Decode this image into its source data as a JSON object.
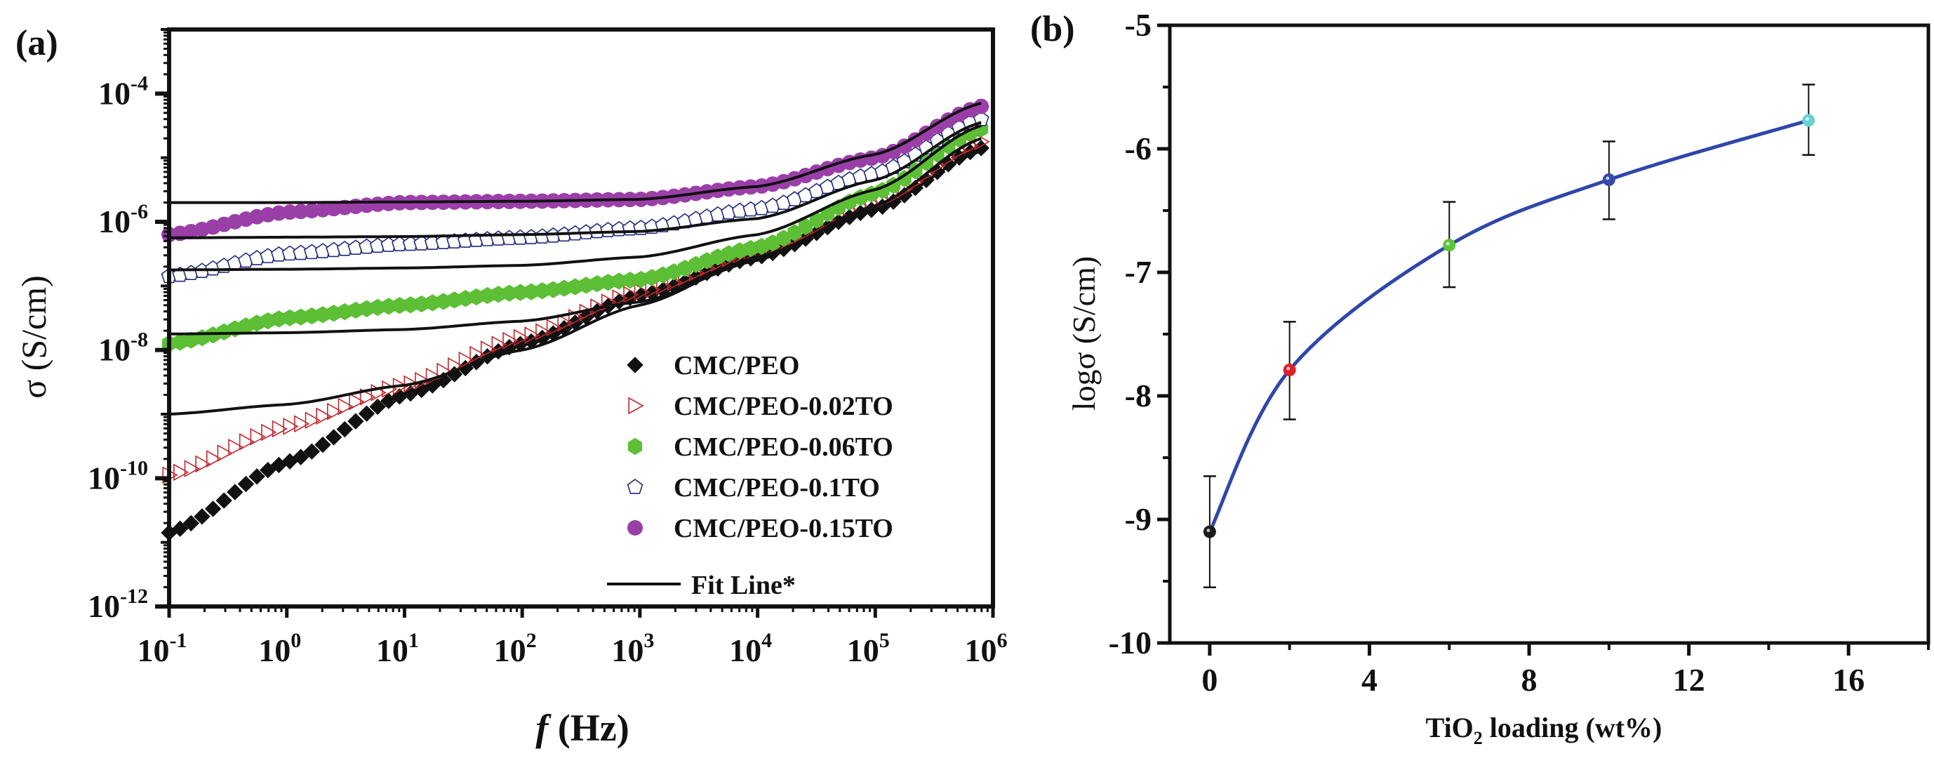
{
  "chart_data": [
    {
      "panel_label": "(a)",
      "type": "scatter",
      "x_scale": "log",
      "y_scale": "log",
      "xlabel_italic": "f",
      "xlabel_rest": " (Hz)",
      "ylabel": "σ (S/cm)",
      "xlim_exp": [
        -1,
        6
      ],
      "ylim_exp": [
        -12,
        -3
      ],
      "x_ticks": [
        {
          "base": "10",
          "exp": "-1",
          "value": -1
        },
        {
          "base": "10",
          "exp": "0",
          "value": 0
        },
        {
          "base": "10",
          "exp": "1",
          "value": 1
        },
        {
          "base": "10",
          "exp": "2",
          "value": 2
        },
        {
          "base": "10",
          "exp": "3",
          "value": 3
        },
        {
          "base": "10",
          "exp": "4",
          "value": 4
        },
        {
          "base": "10",
          "exp": "5",
          "value": 5
        },
        {
          "base": "10",
          "exp": "6",
          "value": 6
        }
      ],
      "y_ticks": [
        {
          "base": "10",
          "exp": "-4",
          "value": -4
        },
        {
          "base": "10",
          "exp": "-6",
          "value": -6
        },
        {
          "base": "10",
          "exp": "-8",
          "value": -8
        },
        {
          "base": "10",
          "exp": "-10",
          "value": -10
        },
        {
          "base": "10",
          "exp": "-12",
          "value": -12
        }
      ],
      "series": [
        {
          "name": "CMC/PEO",
          "marker": "diamond",
          "color": "#111111",
          "filled": true,
          "log_f": [
            -1,
            0,
            1,
            2,
            3,
            4,
            5,
            5.9
          ],
          "log_sigma": [
            -10.85,
            -9.75,
            -8.7,
            -7.9,
            -7.15,
            -6.55,
            -5.8,
            -4.85
          ]
        },
        {
          "name": "CMC/PEO-0.02TO",
          "marker": "triangle-right",
          "color": "#c0282d",
          "filled": false,
          "log_f": [
            -1,
            0,
            1,
            2,
            3,
            4,
            5,
            5.9
          ],
          "log_sigma": [
            -9.95,
            -9.2,
            -8.55,
            -7.8,
            -7.1,
            -6.45,
            -5.7,
            -4.75
          ]
        },
        {
          "name": "CMC/PEO-0.06TO",
          "marker": "hexagon",
          "color": "#5cbf35",
          "filled": true,
          "log_f": [
            -1,
            0,
            1,
            2,
            3,
            4,
            5,
            5.9
          ],
          "log_sigma": [
            -7.9,
            -7.5,
            -7.3,
            -7.1,
            -6.9,
            -6.4,
            -5.55,
            -4.55
          ]
        },
        {
          "name": "CMC/PEO-0.1TO",
          "marker": "pentagon",
          "color": "#1f2a7a",
          "filled": false,
          "log_f": [
            -1,
            0,
            1,
            2,
            3,
            4,
            5,
            5.9
          ],
          "log_sigma": [
            -6.85,
            -6.5,
            -6.35,
            -6.25,
            -6.1,
            -5.8,
            -5.25,
            -4.4
          ]
        },
        {
          "name": "CMC/PEO-0.15TO",
          "marker": "circle",
          "color": "#9b3fa8",
          "filled": true,
          "log_f": [
            -1,
            0,
            1,
            2,
            3,
            4,
            5,
            5.9
          ],
          "log_sigma": [
            -6.2,
            -5.85,
            -5.7,
            -5.68,
            -5.65,
            -5.45,
            -5.0,
            -4.2
          ]
        }
      ],
      "fit_lines": {
        "name": "Fit Line*",
        "color": "#111111",
        "curves": [
          {
            "log_f": [
              -1,
              0,
              1,
              2,
              3,
              4,
              5,
              5.9
            ],
            "log_sigma": [
              -9.0,
              -8.85,
              -8.55,
              -8.0,
              -7.3,
              -6.55,
              -5.8,
              -4.9
            ]
          },
          {
            "log_f": [
              -1,
              0,
              1,
              2,
              3,
              4,
              5,
              5.9
            ],
            "log_sigma": [
              -7.75,
              -7.73,
              -7.68,
              -7.55,
              -7.25,
              -6.6,
              -5.75,
              -4.7
            ]
          },
          {
            "log_f": [
              -1,
              0,
              1,
              2,
              3,
              4,
              5,
              5.9
            ],
            "log_sigma": [
              -6.75,
              -6.74,
              -6.72,
              -6.68,
              -6.55,
              -6.2,
              -5.5,
              -4.5
            ]
          },
          {
            "log_f": [
              -1,
              0,
              1,
              2,
              3,
              4,
              5,
              5.9
            ],
            "log_sigma": [
              -6.25,
              -6.24,
              -6.23,
              -6.2,
              -6.15,
              -5.95,
              -5.35,
              -4.45
            ]
          },
          {
            "log_f": [
              -1,
              0,
              1,
              2,
              3,
              4,
              5,
              5.9
            ],
            "log_sigma": [
              -5.7,
              -5.7,
              -5.69,
              -5.68,
              -5.65,
              -5.45,
              -4.95,
              -4.15
            ]
          }
        ]
      },
      "legend": {
        "placement": "bottom-right",
        "entries": [
          "CMC/PEO",
          "CMC/PEO-0.02TO",
          "CMC/PEO-0.06TO",
          "CMC/PEO-0.1TO",
          "CMC/PEO-0.15TO",
          "Fit Line*"
        ]
      }
    },
    {
      "panel_label": "(b)",
      "type": "line",
      "xlabel_pre": "TiO",
      "xlabel_sub": "2",
      "xlabel_post": " loading (wt%)",
      "ylabel": "logσ (S/cm)",
      "xlim": [
        -1,
        18
      ],
      "ylim": [
        -10,
        -5
      ],
      "x_ticks": [
        "0",
        "4",
        "8",
        "12",
        "16"
      ],
      "x_tick_values": [
        0,
        4,
        8,
        12,
        16
      ],
      "y_ticks": [
        "-5",
        "-6",
        "-7",
        "-8",
        "-9",
        "-10"
      ],
      "y_tick_values": [
        -5,
        -6,
        -7,
        -8,
        -9,
        -10
      ],
      "line_color": "#2f47a8",
      "points": [
        {
          "x": 0,
          "y": -9.1,
          "err_low": -9.55,
          "err_high": -8.65,
          "color": "#1a1a1a"
        },
        {
          "x": 2,
          "y": -7.79,
          "err_low": -8.19,
          "err_high": -7.4,
          "color": "#e0202a"
        },
        {
          "x": 6,
          "y": -6.78,
          "err_low": -7.12,
          "err_high": -6.43,
          "color": "#5cc43a"
        },
        {
          "x": 10,
          "y": -6.25,
          "err_low": -6.57,
          "err_high": -5.94,
          "color": "#3848a8"
        },
        {
          "x": 15,
          "y": -5.77,
          "err_low": -6.05,
          "err_high": -5.48,
          "color": "#6ad0d0"
        }
      ]
    }
  ]
}
